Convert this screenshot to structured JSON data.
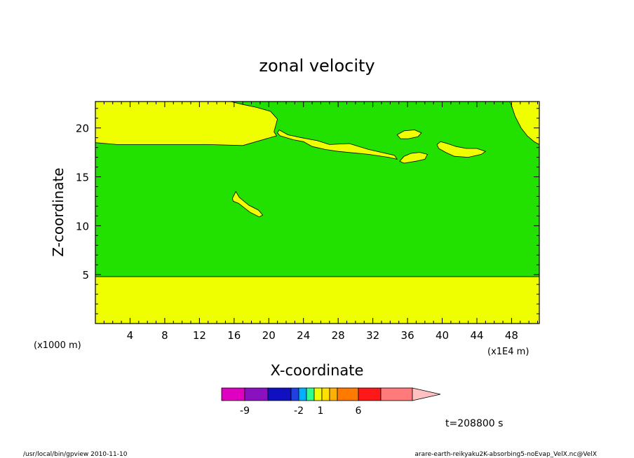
{
  "chart_data": {
    "type": "contour",
    "title": "zonal velocity",
    "xlabel": "X-coordinate",
    "ylabel": "Z-coordinate",
    "x_unit_left": "(x1000 m)",
    "x_unit_right": "(x1E4 m)",
    "xlim": [
      0,
      51.2
    ],
    "ylim": [
      0,
      22.7
    ],
    "x_ticks": [
      4,
      8,
      12,
      16,
      20,
      24,
      28,
      32,
      36,
      40,
      44,
      48
    ],
    "y_ticks": [
      5,
      10,
      15,
      20
    ],
    "background_level": "yellow",
    "regions": [
      {
        "name": "lower-layer",
        "color": "#f0ff00",
        "points": [
          [
            0,
            0
          ],
          [
            51.2,
            0
          ],
          [
            51.2,
            4.8
          ],
          [
            0,
            4.8
          ]
        ]
      },
      {
        "name": "middle-green",
        "color": "#22e000",
        "points": [
          [
            0,
            4.8
          ],
          [
            51.2,
            4.8
          ],
          [
            51.2,
            18.3
          ],
          [
            50.6,
            18.6
          ],
          [
            49.8,
            19.2
          ],
          [
            49.1,
            20
          ],
          [
            48.4,
            21.2
          ],
          [
            48,
            22.3
          ],
          [
            47.8,
            22.7
          ],
          [
            15.6,
            22.7
          ],
          [
            17,
            22.4
          ],
          [
            18.6,
            22.1
          ],
          [
            20.2,
            21.7
          ],
          [
            21,
            20.9
          ],
          [
            20.6,
            19.6
          ],
          [
            20.9,
            19.2
          ],
          [
            17,
            18.2
          ],
          [
            13,
            18.3
          ],
          [
            2.5,
            18.3
          ],
          [
            0,
            18.5
          ]
        ]
      },
      {
        "name": "island-upper",
        "color": "#f0ff00",
        "points": [
          [
            21.3,
            19.2
          ],
          [
            22.8,
            18.8
          ],
          [
            24,
            18.6
          ],
          [
            25,
            18.1
          ],
          [
            26.5,
            17.8
          ],
          [
            28,
            17.6
          ],
          [
            31.5,
            17.3
          ],
          [
            33.8,
            17.0
          ],
          [
            34.8,
            16.8
          ],
          [
            34.5,
            17.2
          ],
          [
            33,
            17.5
          ],
          [
            31.5,
            17.8
          ],
          [
            30,
            18.2
          ],
          [
            29.3,
            18.4
          ],
          [
            27,
            18.3
          ],
          [
            25.6,
            18.7
          ],
          [
            23.8,
            19.0
          ],
          [
            22.2,
            19.3
          ],
          [
            21.2,
            19.8
          ],
          [
            21.0,
            19.5
          ]
        ]
      },
      {
        "name": "island-small-a",
        "color": "#f0ff00",
        "points": [
          [
            34.8,
            19.3
          ],
          [
            35.6,
            19.7
          ],
          [
            36.8,
            19.8
          ],
          [
            37.6,
            19.5
          ],
          [
            37.2,
            19.1
          ],
          [
            36.1,
            18.9
          ],
          [
            35.2,
            18.9
          ]
        ]
      },
      {
        "name": "island-small-b",
        "color": "#f0ff00",
        "points": [
          [
            35.1,
            16.6
          ],
          [
            35.6,
            17.1
          ],
          [
            36.4,
            17.4
          ],
          [
            37.4,
            17.5
          ],
          [
            38.3,
            17.3
          ],
          [
            38.0,
            16.8
          ],
          [
            37.0,
            16.6
          ],
          [
            35.6,
            16.4
          ]
        ]
      },
      {
        "name": "island-small-c",
        "color": "#f0ff00",
        "points": [
          [
            39.4,
            18.3
          ],
          [
            39.8,
            18.6
          ],
          [
            40.6,
            18.4
          ],
          [
            41.6,
            18.1
          ],
          [
            42.8,
            17.9
          ],
          [
            44.0,
            17.9
          ],
          [
            45.0,
            17.6
          ],
          [
            44.5,
            17.3
          ],
          [
            43.0,
            17.0
          ],
          [
            41.4,
            17.1
          ],
          [
            40.4,
            17.5
          ],
          [
            39.6,
            17.9
          ]
        ]
      },
      {
        "name": "island-low",
        "color": "#f0ff00",
        "points": [
          [
            15.8,
            12.8
          ],
          [
            16.2,
            13.5
          ],
          [
            16.6,
            12.9
          ],
          [
            17.7,
            12.1
          ],
          [
            18.8,
            11.6
          ],
          [
            19.3,
            11.1
          ],
          [
            18.9,
            10.9
          ],
          [
            17.8,
            11.4
          ],
          [
            16.5,
            12.3
          ],
          [
            15.9,
            12.5
          ]
        ]
      }
    ],
    "colorbar": {
      "colors": [
        "#e000c0",
        "#8a10c0",
        "#1010c0",
        "#2040e0",
        "#00b0ff",
        "#30ff90",
        "#f0ff00",
        "#ffe000",
        "#ffb000",
        "#ff7a00",
        "#ff1818",
        "#ff7a7a",
        "#ffc0c0"
      ],
      "tick_labels": [
        "-9",
        "-2",
        "1",
        "6"
      ]
    },
    "time_label": "t=208800 s"
  },
  "footer": {
    "left": "/usr/local/bin/gpview  2010-11-10",
    "right": "arare-earth-reikyaku2K-absorbing5-noEvap_VelX.nc@VelX"
  }
}
